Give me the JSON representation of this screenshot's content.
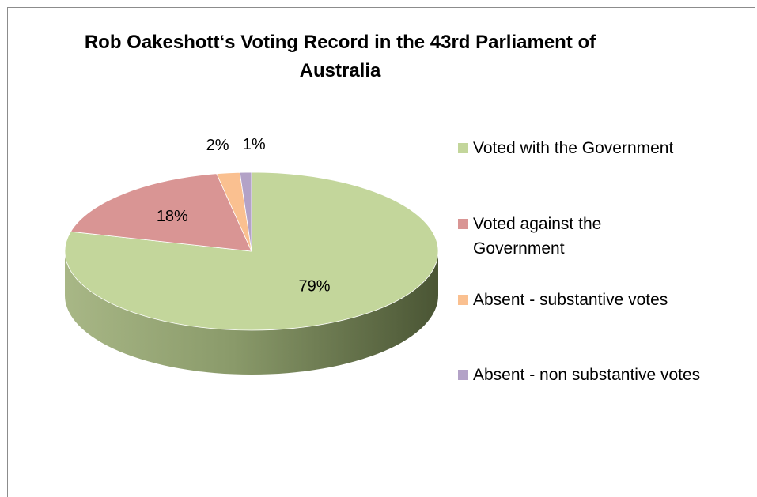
{
  "chart_data": {
    "type": "pie",
    "title": "Rob Oakeshott‘s Voting Record in the 43rd Parliament of Australia",
    "slices": [
      {
        "label": "Voted with the Government",
        "value": 79,
        "display": "79%",
        "color": "#C3D69B"
      },
      {
        "label": "Voted against the Government",
        "value": 18,
        "display": "18%",
        "color": "#D99594"
      },
      {
        "label": "Absent - substantive votes",
        "value": 2,
        "display": "2%",
        "color": "#FAC090"
      },
      {
        "label": "Absent - non substantive votes",
        "value": 1,
        "display": "1%",
        "color": "#B3A2C7"
      }
    ],
    "legend_position": "right",
    "style": "3d"
  }
}
